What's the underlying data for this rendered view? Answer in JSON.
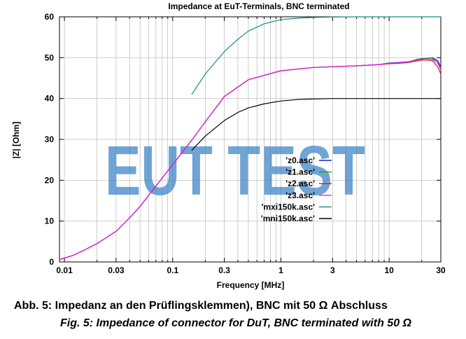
{
  "chart_data": {
    "type": "line",
    "title": "Impedance at EuT-Terminals, BNC terminated",
    "xlabel": "Frequency [MHz]",
    "ylabel": "|Z| [Ohm]",
    "x_scale": "log",
    "xlim": [
      0.009,
      30
    ],
    "ylim": [
      0,
      60
    ],
    "x_ticks": [
      "0.01",
      "0.03",
      "0.1",
      "0.3",
      "1",
      "3",
      "10",
      "30"
    ],
    "x_tick_values": [
      0.01,
      0.03,
      0.1,
      0.3,
      1,
      3,
      10,
      30
    ],
    "y_ticks": [
      "0",
      "10",
      "20",
      "30",
      "40",
      "50",
      "60"
    ],
    "y_tick_values": [
      0,
      10,
      20,
      30,
      40,
      50,
      60
    ],
    "grid": true,
    "legend_position": "right",
    "series": [
      {
        "name": "'z0.asc'",
        "color": "#1d1dcc",
        "x": [
          0.009,
          0.012,
          0.015,
          0.02,
          0.03,
          0.04,
          0.05,
          0.07,
          0.1,
          0.15,
          0.2,
          0.3,
          0.5,
          1,
          2,
          5,
          8,
          10,
          12,
          15,
          18,
          20,
          25,
          28,
          30
        ],
        "y": [
          0.6,
          1.6,
          2.8,
          4.5,
          7.5,
          10.8,
          13.6,
          18.6,
          23.8,
          29.8,
          34.3,
          40.5,
          44.6,
          46.8,
          47.6,
          48.0,
          48.3,
          48.7,
          48.8,
          49.0,
          49.5,
          49.6,
          50.0,
          49.3,
          47.8
        ]
      },
      {
        "name": "'z1.asc'",
        "color": "#1aa31a",
        "x": [
          0.009,
          0.012,
          0.015,
          0.02,
          0.03,
          0.04,
          0.05,
          0.07,
          0.1,
          0.15,
          0.2,
          0.3,
          0.5,
          1,
          2,
          5,
          8,
          10,
          12,
          15,
          18,
          20,
          25,
          28,
          30
        ],
        "y": [
          0.6,
          1.6,
          2.8,
          4.5,
          7.5,
          10.8,
          13.6,
          18.6,
          23.8,
          29.8,
          34.3,
          40.5,
          44.6,
          46.8,
          47.6,
          48.0,
          48.3,
          48.6,
          48.7,
          48.9,
          49.6,
          49.8,
          49.9,
          48.8,
          47.5
        ]
      },
      {
        "name": "'z2.asc'",
        "color": "#d9142a",
        "x": [
          0.009,
          0.012,
          0.015,
          0.02,
          0.03,
          0.04,
          0.05,
          0.07,
          0.1,
          0.15,
          0.2,
          0.3,
          0.5,
          1,
          2,
          5,
          8,
          10,
          12,
          15,
          18,
          20,
          25,
          28,
          30
        ],
        "y": [
          0.6,
          1.6,
          2.8,
          4.5,
          7.5,
          10.8,
          13.6,
          18.6,
          23.8,
          29.8,
          34.3,
          40.5,
          44.6,
          46.8,
          47.6,
          48.0,
          48.3,
          48.5,
          48.6,
          48.8,
          49.2,
          49.4,
          49.3,
          47.8,
          46.0
        ]
      },
      {
        "name": "'z3.asc'",
        "color": "#e020e0",
        "x": [
          0.009,
          0.012,
          0.015,
          0.02,
          0.03,
          0.04,
          0.05,
          0.07,
          0.1,
          0.15,
          0.2,
          0.3,
          0.5,
          1,
          2,
          5,
          8,
          10,
          12,
          15,
          18,
          20,
          25,
          28,
          30
        ],
        "y": [
          0.6,
          1.6,
          2.8,
          4.5,
          7.5,
          10.8,
          13.6,
          18.6,
          23.8,
          29.8,
          34.3,
          40.5,
          44.6,
          46.8,
          47.6,
          48.0,
          48.3,
          48.6,
          48.7,
          48.9,
          49.4,
          49.7,
          49.6,
          48.8,
          47.0
        ]
      },
      {
        "name": "'mxi150k.asc'",
        "color": "#178a8a",
        "x": [
          0.15,
          0.2,
          0.3,
          0.4,
          0.5,
          0.7,
          1,
          1.5,
          2,
          3,
          5,
          10,
          20,
          30
        ],
        "y": [
          41,
          46,
          51.5,
          54.5,
          56.5,
          58.3,
          59.3,
          59.7,
          59.85,
          59.95,
          60,
          60,
          60,
          60
        ]
      },
      {
        "name": "'mni150k.asc'",
        "color": "#000000",
        "x": [
          0.15,
          0.2,
          0.3,
          0.4,
          0.5,
          0.7,
          1,
          1.5,
          2,
          3,
          5,
          10,
          20,
          30
        ],
        "y": [
          27.3,
          30.8,
          34.6,
          36.6,
          37.7,
          38.7,
          39.4,
          39.8,
          39.9,
          40,
          40,
          40,
          40,
          40
        ]
      }
    ],
    "watermark": "EUT TEST"
  },
  "caption": {
    "de": "Abb. 5: Impedanz an den Prüflingsklemmen), BNC mit 50 Ω Abschluss",
    "en": "Fig. 5: Impedance of connector for DuT, BNC terminated with 50 Ω"
  },
  "colors": {
    "watermark": "#3f86c7",
    "grid": "#b8b8b8"
  }
}
